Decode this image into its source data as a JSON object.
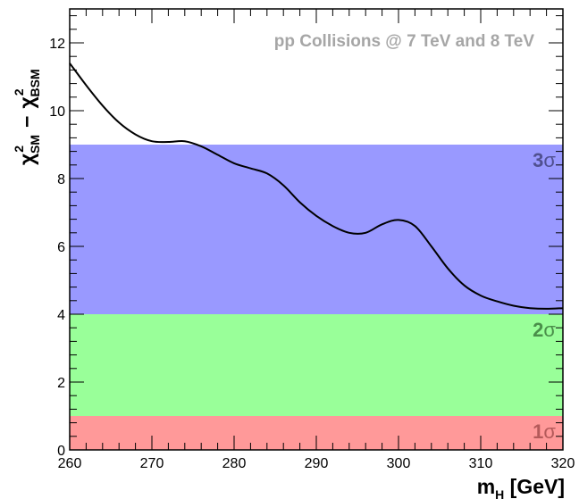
{
  "chart_data": {
    "type": "line",
    "annotation": "pp Collisions @ 7 TeV and 8 TeV",
    "xlabel": {
      "main": "m",
      "sub": "H",
      "unit": " [GeV]"
    },
    "ylabel": {
      "chi": "χ",
      "sub1": "SM",
      "sub2": "BSM",
      "sup": "2",
      "minus": "−"
    },
    "xlim": [
      260,
      320
    ],
    "ylim": [
      0,
      13
    ],
    "xticks": [
      260,
      270,
      280,
      290,
      300,
      310,
      320
    ],
    "yticks": [
      0,
      2,
      4,
      6,
      8,
      10,
      12
    ],
    "bands": [
      {
        "name": "1σ",
        "num": "1",
        "sym": "σ",
        "ymin": 0,
        "ymax": 1,
        "color": "#ff9999",
        "label_color": "#b45a5a"
      },
      {
        "name": "2σ",
        "num": "2",
        "sym": "σ",
        "ymin": 1,
        "ymax": 4,
        "color": "#99ff99",
        "label_color": "#4a8f4a"
      },
      {
        "name": "3σ",
        "num": "3",
        "sym": "σ",
        "ymin": 4,
        "ymax": 9,
        "color": "#9999ff",
        "label_color": "#505090"
      }
    ],
    "series": [
      {
        "color": "#000000",
        "x": [
          260,
          262,
          264,
          266,
          268,
          270,
          272,
          274,
          276,
          278,
          280,
          282,
          284,
          286,
          288,
          290,
          292,
          294,
          296,
          298,
          300,
          302,
          304,
          306,
          308,
          310,
          312,
          314,
          316,
          318,
          320
        ],
        "y": [
          11.4,
          10.75,
          10.15,
          9.65,
          9.3,
          9.1,
          9.08,
          9.1,
          8.95,
          8.7,
          8.45,
          8.3,
          8.15,
          7.8,
          7.3,
          6.9,
          6.6,
          6.4,
          6.4,
          6.65,
          6.78,
          6.6,
          6.0,
          5.35,
          4.85,
          4.55,
          4.38,
          4.25,
          4.18,
          4.16,
          4.18
        ]
      }
    ]
  }
}
